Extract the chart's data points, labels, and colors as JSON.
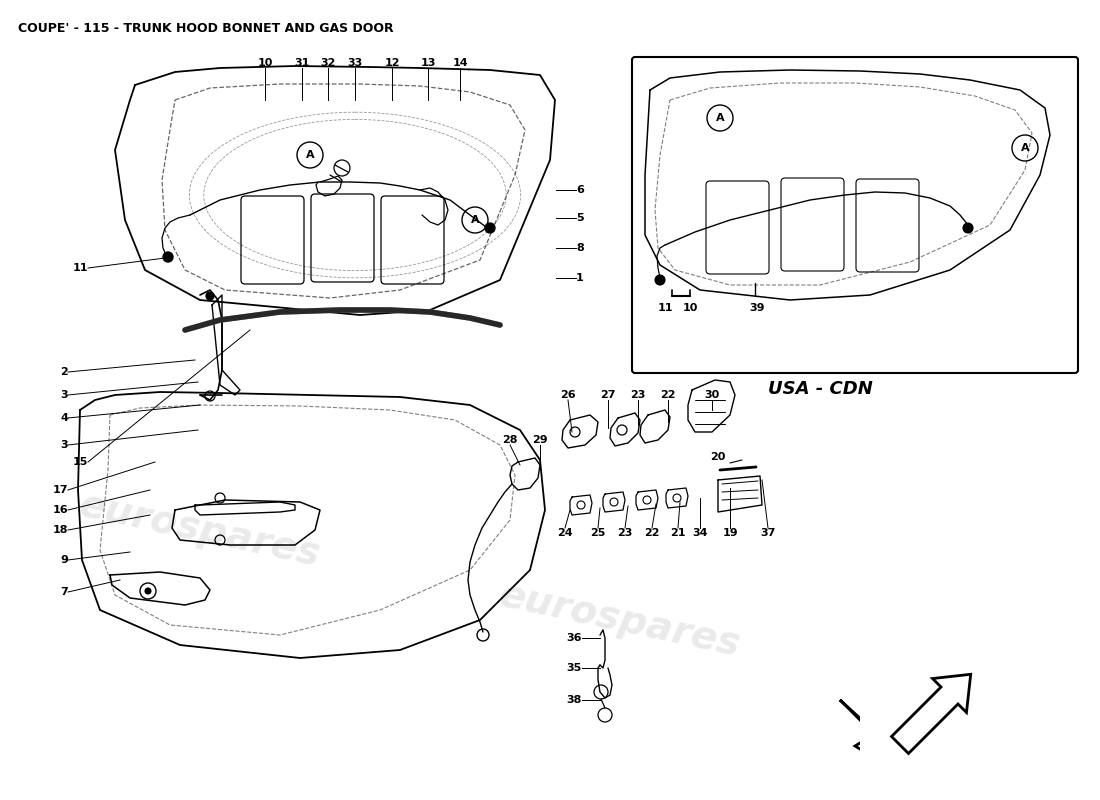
{
  "title": "COUPE' - 115 - TRUNK HOOD BONNET AND GAS DOOR",
  "title_fontsize": 9,
  "background_color": "#ffffff",
  "text_color": "#000000",
  "line_color": "#000000",
  "watermark_text": "eurospares",
  "usa_cdn_label": "USA - CDN",
  "fig_width": 11.0,
  "fig_height": 8.0,
  "dpi": 100
}
